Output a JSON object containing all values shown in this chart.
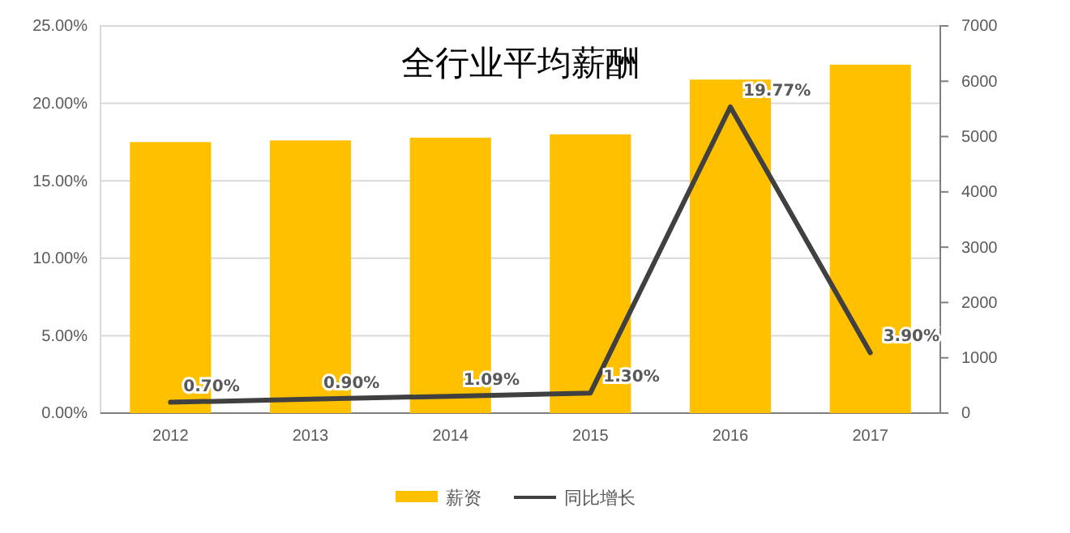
{
  "chart_data": {
    "type": "bar",
    "title": "全行业平均薪酬",
    "categories": [
      "2012",
      "2013",
      "2014",
      "2015",
      "2016",
      "2017"
    ],
    "series": [
      {
        "name": "薪资",
        "axis": "y2",
        "color": "#ffc000",
        "values": [
          4900,
          4930,
          4980,
          5040,
          6030,
          6300
        ]
      },
      {
        "name": "同比增长",
        "type": "line",
        "axis": "y",
        "color": "#404040",
        "values": [
          0.7,
          0.9,
          1.09,
          1.3,
          19.77,
          3.9
        ],
        "value_labels": [
          "0.70%",
          "0.90%",
          "1.09%",
          "1.30%",
          "19.77%",
          "3.90%"
        ]
      }
    ],
    "ylim": [
      0,
      25
    ],
    "yticks": [
      {
        "value": 0,
        "label": "0.00%"
      },
      {
        "value": 5,
        "label": "5.00%"
      },
      {
        "value": 10,
        "label": "10.00%"
      },
      {
        "value": 15,
        "label": "15.00%"
      },
      {
        "value": 20,
        "label": "20.00%"
      },
      {
        "value": 25,
        "label": "25.00%"
      }
    ],
    "y2lim": [
      0,
      7000
    ],
    "y2ticks": [
      0,
      1000,
      2000,
      3000,
      4000,
      5000,
      6000,
      7000
    ],
    "grid": "y",
    "legend": "bottom",
    "marker": "none",
    "line_style": "solid"
  }
}
